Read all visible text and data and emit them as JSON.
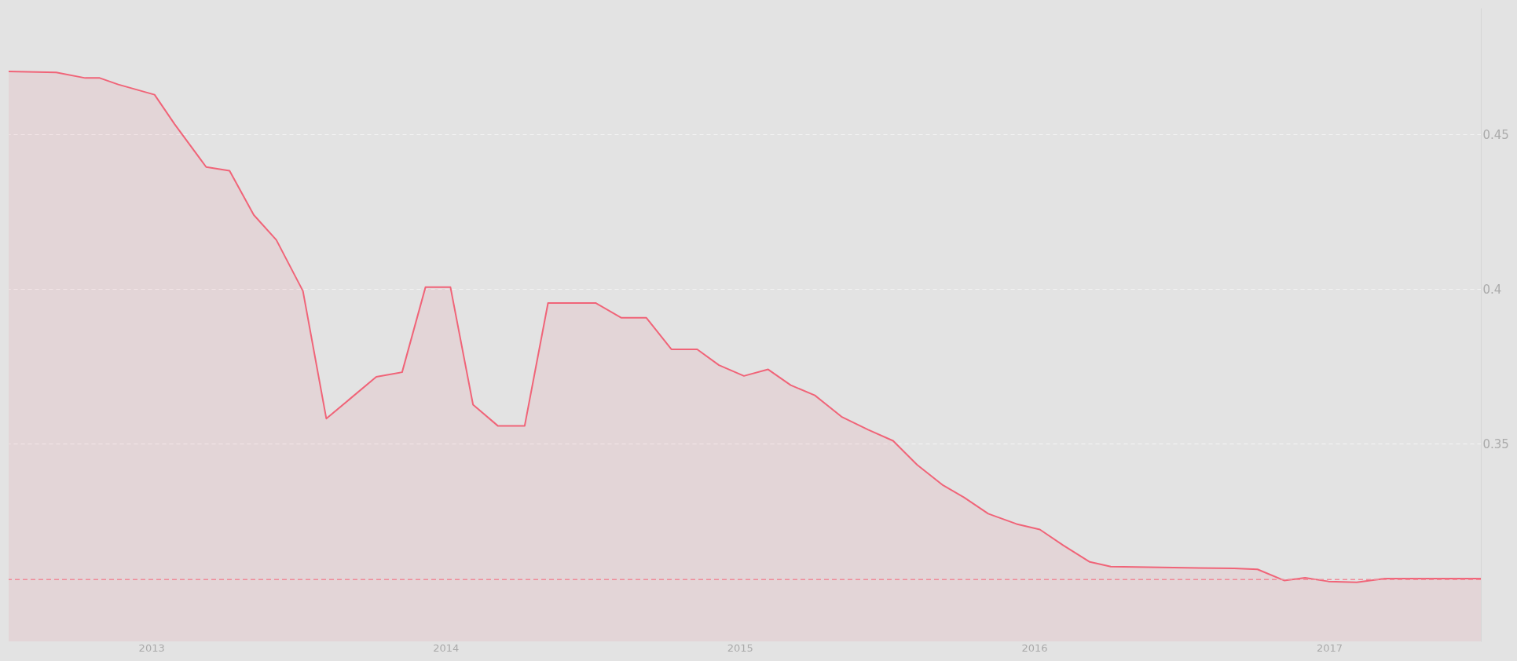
{
  "chart_data": {
    "type": "area",
    "grid": "y",
    "line_style": "solid",
    "marker": "none",
    "xlim": [
      "2012-07-08",
      "2017-07-08"
    ],
    "ylim": [
      0.286,
      0.491
    ],
    "xticks": [
      {
        "value": "2013-01-01",
        "label": "2013"
      },
      {
        "value": "2014-01-01",
        "label": "2014"
      },
      {
        "value": "2015-01-01",
        "label": "2015"
      },
      {
        "value": "2016-01-01",
        "label": "2016"
      },
      {
        "value": "2017-01-01",
        "label": "2017"
      }
    ],
    "yticks": [
      0.35,
      0.4,
      0.45
    ],
    "ref_lines": [
      {
        "axis": "y",
        "value": 0.306,
        "color": "#f08a98",
        "line_style": "dashed"
      }
    ],
    "x": [
      "2012-07-08",
      "2012-09-05",
      "2012-10-11",
      "2012-10-29",
      "2012-11-21",
      "2013-01-05",
      "2013-01-30",
      "2013-03-10",
      "2013-04-08",
      "2013-05-08",
      "2013-06-05",
      "2013-07-08",
      "2013-08-06",
      "2013-09-04",
      "2013-10-07",
      "2013-11-08",
      "2013-12-07",
      "2014-01-07",
      "2014-02-04",
      "2014-03-07",
      "2014-04-09",
      "2014-05-08",
      "2014-07-06",
      "2014-08-07",
      "2014-09-07",
      "2014-10-08",
      "2014-11-09",
      "2014-12-06",
      "2015-01-06",
      "2015-02-05",
      "2015-03-05",
      "2015-04-04",
      "2015-05-07",
      "2015-06-09",
      "2015-07-10",
      "2015-08-09",
      "2015-09-10",
      "2015-10-06",
      "2015-11-05",
      "2015-12-10",
      "2016-01-08",
      "2016-02-06",
      "2016-03-10",
      "2016-04-05",
      "2016-09-05",
      "2016-10-04",
      "2016-11-06",
      "2016-12-02",
      "2016-12-31",
      "2017-02-04",
      "2017-03-11",
      "2017-07-08"
    ],
    "series": [
      {
        "color": "#f06478",
        "values": [
          0.4704,
          0.4701,
          0.4683,
          0.4683,
          0.4662,
          0.4629,
          0.4533,
          0.4395,
          0.4383,
          0.424,
          0.4159,
          0.3994,
          0.3581,
          0.3644,
          0.3716,
          0.3731,
          0.4006,
          0.4006,
          0.3626,
          0.3557,
          0.3557,
          0.3955,
          0.3955,
          0.3907,
          0.3907,
          0.3805,
          0.3805,
          0.3754,
          0.3719,
          0.374,
          0.3689,
          0.3656,
          0.3587,
          0.3545,
          0.3509,
          0.3431,
          0.3365,
          0.3326,
          0.3273,
          0.324,
          0.3222,
          0.3171,
          0.3117,
          0.3102,
          0.3096,
          0.3093,
          0.3057,
          0.3066,
          0.3054,
          0.3051,
          0.3063,
          0.3063
        ]
      }
    ]
  }
}
